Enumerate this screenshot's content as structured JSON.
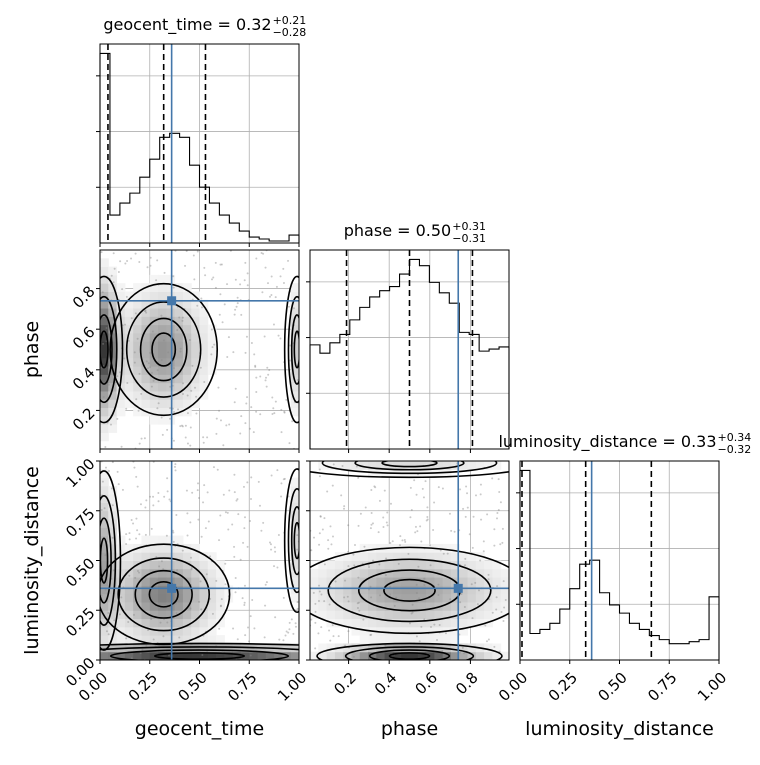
{
  "chart_data": {
    "type": "corner",
    "parameters": [
      "geocent_time",
      "phase",
      "luminosity_distance"
    ],
    "truth": {
      "geocent_time": 0.36,
      "phase": 0.74,
      "luminosity_distance": 0.36
    },
    "truth_color": "#4477aa",
    "grid": true,
    "marginals": [
      {
        "param": "geocent_time",
        "title_prefix": "geocent_time = 0.32",
        "sup": "+0.21",
        "sub": "−0.28",
        "xlim": [
          0,
          1
        ],
        "quantiles": [
          0.04,
          0.32,
          0.53
        ],
        "bins": 20,
        "counts": [
          0.95,
          0.14,
          0.2,
          0.25,
          0.33,
          0.42,
          0.53,
          0.55,
          0.53,
          0.39,
          0.28,
          0.2,
          0.14,
          0.1,
          0.06,
          0.03,
          0.02,
          0.01,
          0.01,
          0.04
        ],
        "ticks": [
          0,
          0.25,
          0.5,
          0.75,
          1
        ]
      },
      {
        "param": "phase",
        "title_prefix": "phase = 0.50",
        "sup": "+0.31",
        "sub": "−0.31",
        "xlim": [
          0.01,
          0.99
        ],
        "quantiles": [
          0.19,
          0.5,
          0.81
        ],
        "bins": 20,
        "counts": [
          0.5,
          0.46,
          0.51,
          0.55,
          0.62,
          0.68,
          0.73,
          0.76,
          0.78,
          0.84,
          0.91,
          0.88,
          0.8,
          0.75,
          0.7,
          0.56,
          0.55,
          0.47,
          0.48,
          0.49
        ],
        "ticks": [
          0.2,
          0.4,
          0.6,
          0.8
        ]
      },
      {
        "param": "luminosity_distance",
        "title_prefix": "luminosity_distance = 0.33",
        "sup": "+0.34",
        "sub": "−0.32",
        "xlim": [
          0,
          1
        ],
        "quantiles": [
          0.01,
          0.33,
          0.66
        ],
        "bins": 20,
        "counts": [
          0.93,
          0.13,
          0.15,
          0.18,
          0.25,
          0.35,
          0.47,
          0.49,
          0.33,
          0.27,
          0.23,
          0.18,
          0.15,
          0.12,
          0.1,
          0.08,
          0.08,
          0.09,
          0.1,
          0.31
        ],
        "ticks": [
          0,
          0.25,
          0.5,
          0.75,
          1
        ]
      }
    ],
    "tick_labels": {
      "geocent_time": [
        "0.00",
        "0.25",
        "0.50",
        "0.75",
        "1.00"
      ],
      "phase": [
        "0.2",
        "0.4",
        "0.6",
        "0.8"
      ],
      "luminosity_distance": [
        "0.00",
        "0.25",
        "0.50",
        "0.75",
        "1.00"
      ]
    },
    "axis_labels": {
      "x": [
        "geocent_time",
        "phase",
        "luminosity_distance"
      ],
      "y": [
        "phase",
        "luminosity_distance"
      ]
    },
    "joints": [
      {
        "x": "geocent_time",
        "y": "phase",
        "xlim": [
          0,
          1
        ],
        "ylim": [
          0.01,
          0.99
        ],
        "density_peaks": [
          [
            0.02,
            0.5,
            0.9,
            0.045,
            0.2
          ],
          [
            0.99,
            0.5,
            0.3,
            0.03,
            0.2
          ],
          [
            0.32,
            0.5,
            0.55,
            0.13,
            0.18
          ]
        ]
      },
      {
        "x": "geocent_time",
        "y": "luminosity_distance",
        "xlim": [
          0,
          1
        ],
        "ylim": [
          0,
          1
        ],
        "density_peaks": [
          [
            0.32,
            0.33,
            0.5,
            0.16,
            0.14
          ],
          [
            0.5,
            0.02,
            0.7,
            0.5,
            0.035
          ],
          [
            0.02,
            0.5,
            0.35,
            0.04,
            0.25
          ],
          [
            0.99,
            0.6,
            0.2,
            0.03,
            0.2
          ]
        ]
      },
      {
        "x": "phase",
        "y": "luminosity_distance",
        "xlim": [
          0.01,
          0.99
        ],
        "ylim": [
          0,
          1
        ],
        "density_peaks": [
          [
            0.5,
            0.02,
            1.0,
            0.22,
            0.035
          ],
          [
            0.5,
            0.35,
            0.55,
            0.28,
            0.12
          ],
          [
            0.5,
            0.99,
            0.25,
            0.3,
            0.04
          ]
        ]
      }
    ]
  }
}
